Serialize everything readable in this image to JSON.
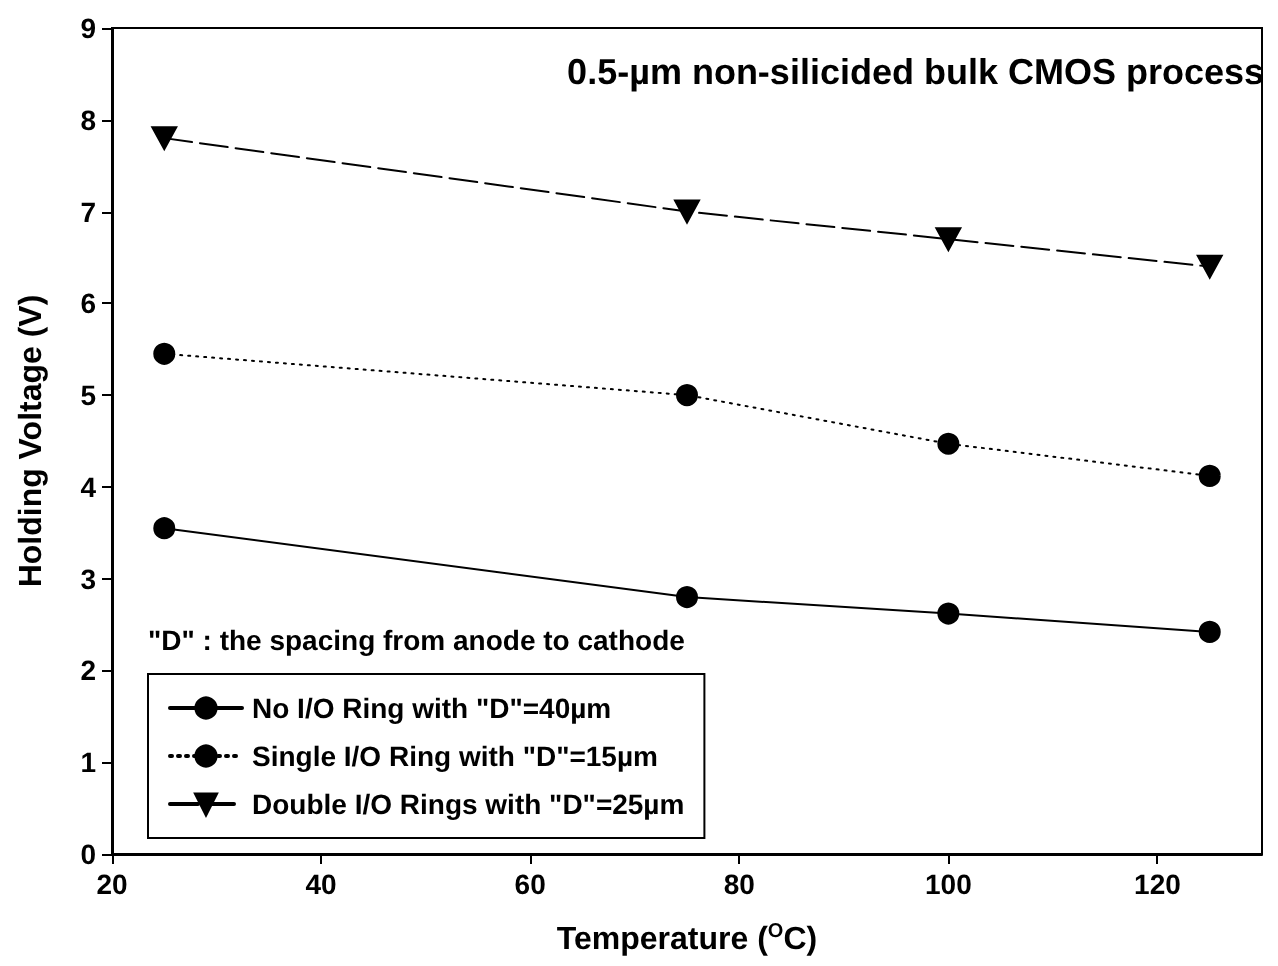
{
  "chart_data": {
    "type": "line",
    "title": "0.5-µm non-silicided bulk CMOS process",
    "xlabel": "Temperature ($^{O}$C)",
    "ylabel": "Holding Voltage (V)",
    "annotations": [
      "\"D\" : the spacing from anode to cathode"
    ],
    "x": [
      25,
      75,
      100,
      125
    ],
    "series": [
      {
        "name": "No I/O Ring with \"D\"=40µm",
        "color": "#000000",
        "marker": "circle",
        "line_style": "solid",
        "values": [
          3.55,
          2.8,
          2.62,
          2.42
        ]
      },
      {
        "name": "Single I/O Ring with \"D\"=15µm",
        "color": "#000000",
        "marker": "circle",
        "line_style": "dotted",
        "values": [
          5.45,
          5.0,
          4.47,
          4.12
        ]
      },
      {
        "name": "Double I/O Rings with \"D\"=25µm",
        "color": "#000000",
        "marker": "triangle",
        "line_style": "dashed",
        "values": [
          7.8,
          7.0,
          6.7,
          6.4
        ]
      }
    ],
    "xlim": [
      20,
      130
    ],
    "xticks": [
      20,
      40,
      60,
      80,
      100,
      120
    ],
    "ylim": [
      0,
      9
    ],
    "yticks": [
      0,
      1,
      2,
      3,
      4,
      5,
      6,
      7,
      8,
      9
    ],
    "grid": false,
    "legend": "bottom left"
  }
}
